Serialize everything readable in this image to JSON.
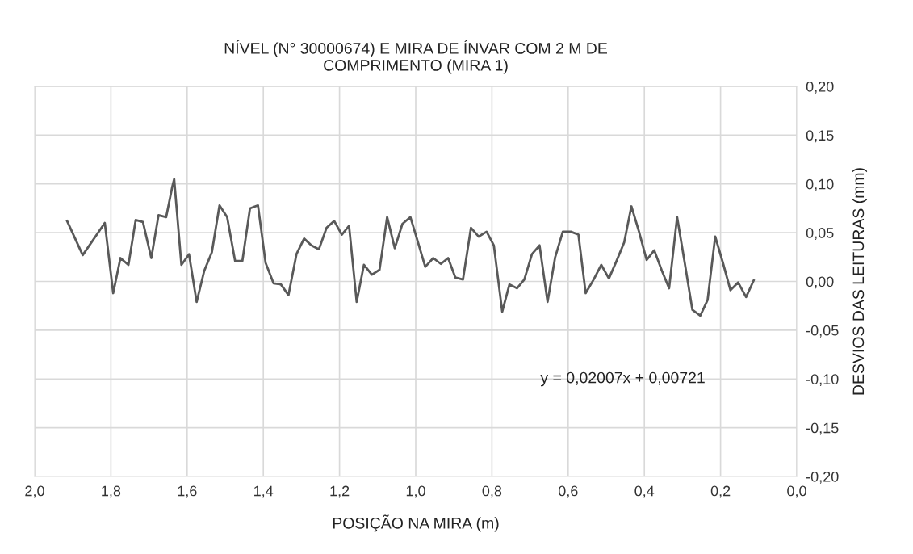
{
  "chart_data": {
    "type": "line",
    "title": "NÍVEL (N° 30000674) E MIRA DE ÍNVAR COM 2 M DE\nCOMPRIMENTO (MIRA 1)",
    "xlabel": "POSIÇÃO NA MIRA (m)",
    "ylabel": "DESVIOS DAS LEITURAS (mm)",
    "annotations": [
      "y = 0,02007x + 0,00721"
    ],
    "x": [
      1.915,
      1.874,
      1.816,
      1.794,
      1.775,
      1.754,
      1.735,
      1.716,
      1.694,
      1.675,
      1.655,
      1.639,
      1.634,
      1.615,
      1.595,
      1.575,
      1.555,
      1.535,
      1.515,
      1.495,
      1.474,
      1.455,
      1.435,
      1.414,
      1.394,
      1.373,
      1.354,
      1.334,
      1.313,
      1.293,
      1.274,
      1.254,
      1.234,
      1.214,
      1.194,
      1.175,
      1.155,
      1.136,
      1.115,
      1.095,
      1.075,
      1.055,
      1.035,
      1.014,
      0.994,
      0.975,
      0.954,
      0.934,
      0.915,
      0.896,
      0.876,
      0.855,
      0.835,
      0.814,
      0.795,
      0.773,
      0.754,
      0.734,
      0.715,
      0.695,
      0.675,
      0.654,
      0.634,
      0.614,
      0.593,
      0.573,
      0.554,
      0.533,
      0.513,
      0.493,
      0.473,
      0.453,
      0.434,
      0.414,
      0.394,
      0.374,
      0.354,
      0.335,
      0.314,
      0.294,
      0.274,
      0.253,
      0.234,
      0.214,
      0.193,
      0.174,
      0.154,
      0.133,
      0.113
    ],
    "series": [
      {
        "color": "#595959",
        "values": [
          0.062,
          0.027,
          0.06,
          -0.012,
          0.024,
          0.017,
          0.063,
          0.061,
          0.024,
          0.068,
          0.066,
          0.097,
          0.105,
          0.017,
          0.028,
          -0.021,
          0.011,
          0.03,
          0.078,
          0.066,
          0.021,
          0.021,
          0.075,
          0.078,
          0.019,
          -0.002,
          -0.003,
          -0.014,
          0.028,
          0.044,
          0.037,
          0.033,
          0.055,
          0.062,
          0.048,
          0.057,
          -0.021,
          0.017,
          0.007,
          0.012,
          0.066,
          0.034,
          0.059,
          0.066,
          0.04,
          0.015,
          0.024,
          0.018,
          0.024,
          0.004,
          0.002,
          0.055,
          0.046,
          0.051,
          0.037,
          -0.031,
          -0.003,
          -0.007,
          0.002,
          0.028,
          0.037,
          -0.021,
          0.025,
          0.051,
          0.051,
          0.048,
          -0.012,
          0.002,
          0.017,
          0.003,
          0.021,
          0.04,
          0.077,
          0.051,
          0.022,
          0.032,
          0.011,
          -0.007,
          0.066,
          0.019,
          -0.029,
          -0.035,
          -0.019,
          0.046,
          0.018,
          -0.009,
          -0.001,
          -0.016,
          0.001
        ]
      }
    ],
    "xlim": [
      2.0,
      0.0
    ],
    "xticks": [
      {
        "value": 2.0,
        "label": "2,0"
      },
      {
        "value": 1.8,
        "label": "1,8"
      },
      {
        "value": 1.6,
        "label": "1,6"
      },
      {
        "value": 1.4,
        "label": "1,4"
      },
      {
        "value": 1.2,
        "label": "1,2"
      },
      {
        "value": 1.0,
        "label": "1,0"
      },
      {
        "value": 0.8,
        "label": "0,8"
      },
      {
        "value": 0.6,
        "label": "0,6"
      },
      {
        "value": 0.4,
        "label": "0,4"
      },
      {
        "value": 0.2,
        "label": "0,2"
      },
      {
        "value": 0.0,
        "label": "0,0"
      }
    ],
    "ylim": [
      -0.2,
      0.2
    ],
    "yticks": [
      {
        "value": -0.2,
        "label": "-0,20"
      },
      {
        "value": -0.15,
        "label": "-0,15"
      },
      {
        "value": -0.1,
        "label": "-0,10"
      },
      {
        "value": -0.05,
        "label": "-0,05"
      },
      {
        "value": 0.0,
        "label": "0,00"
      },
      {
        "value": 0.05,
        "label": "0,05"
      },
      {
        "value": 0.1,
        "label": "0,10"
      },
      {
        "value": 0.15,
        "label": "0,15"
      },
      {
        "value": 0.2,
        "label": "0,20"
      }
    ],
    "grid": true,
    "marker": "none",
    "line_style": "solid",
    "legend": false
  }
}
